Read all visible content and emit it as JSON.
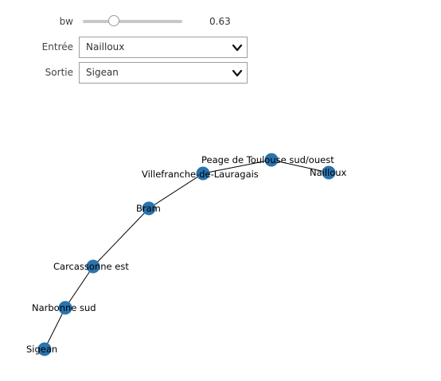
{
  "controls": {
    "bw": {
      "label": "bw",
      "value": 0.63,
      "value_text": "0.63",
      "min": 0,
      "max": 2
    },
    "entree": {
      "label": "Entrée",
      "selected": "Nailloux"
    },
    "sortie": {
      "label": "Sortie",
      "selected": "Sigean"
    }
  },
  "graph": {
    "node_color": "#2a73ad",
    "edge_color": "#000000",
    "nodes": [
      {
        "id": "peage",
        "label": "Peage de Toulouse sud/ouest"
      },
      {
        "id": "nailloux",
        "label": "Nailloux"
      },
      {
        "id": "villefranche",
        "label": "Villefranche-de-Lauragais"
      },
      {
        "id": "bram",
        "label": "Bram"
      },
      {
        "id": "carcassonne",
        "label": "Carcassonne est"
      },
      {
        "id": "narbonne",
        "label": "Narbonne sud"
      },
      {
        "id": "sigean",
        "label": "Sigean"
      }
    ],
    "edges": [
      [
        "nailloux",
        "peage"
      ],
      [
        "peage",
        "villefranche"
      ],
      [
        "villefranche",
        "bram"
      ],
      [
        "bram",
        "carcassonne"
      ],
      [
        "carcassonne",
        "narbonne"
      ],
      [
        "narbonne",
        "sigean"
      ]
    ]
  }
}
